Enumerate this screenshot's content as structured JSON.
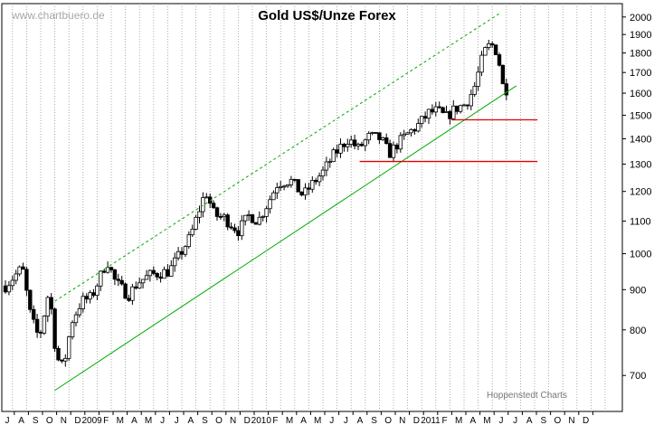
{
  "chart_data": {
    "type": "candlestick",
    "title": "Gold US$/Unze Forex",
    "watermark": "www.chartbuero.de",
    "credit": "Hoppenstedt Charts",
    "y_scale": "log",
    "ylim": [
      630,
      2080
    ],
    "y_ticks": [
      700,
      800,
      900,
      1000,
      1100,
      1200,
      1300,
      1400,
      1500,
      1600,
      1700,
      1800,
      1900,
      2000
    ],
    "x_month_labels": [
      "J",
      "A",
      "S",
      "O",
      "N",
      "D",
      "2009",
      "F",
      "M",
      "A",
      "M",
      "J",
      "J",
      "A",
      "S",
      "O",
      "N",
      "D",
      "2010",
      "F",
      "M",
      "A",
      "M",
      "J",
      "J",
      "A",
      "S",
      "O",
      "N",
      "D",
      "2011",
      "F",
      "M",
      "A",
      "M",
      "J",
      "J",
      "A",
      "S",
      "O",
      "N",
      "D"
    ],
    "grid": "vertical dotted",
    "colors": {
      "up_candle": "#ffffff",
      "down_candle": "#000000",
      "trend": "#00aa00",
      "support": "#e00000"
    },
    "anchors": [
      {
        "month": 0,
        "price": 910
      },
      {
        "month": 1.2,
        "price": 960
      },
      {
        "month": 1.8,
        "price": 830
      },
      {
        "month": 2.4,
        "price": 780
      },
      {
        "month": 3.1,
        "price": 900
      },
      {
        "month": 3.6,
        "price": 740
      },
      {
        "month": 4.1,
        "price": 715
      },
      {
        "month": 4.7,
        "price": 820
      },
      {
        "month": 5.4,
        "price": 870
      },
      {
        "month": 6.1,
        "price": 880
      },
      {
        "month": 7.2,
        "price": 980
      },
      {
        "month": 7.8,
        "price": 920
      },
      {
        "month": 8.7,
        "price": 885
      },
      {
        "month": 9.4,
        "price": 920
      },
      {
        "month": 10.3,
        "price": 940
      },
      {
        "month": 11.6,
        "price": 950
      },
      {
        "month": 12.4,
        "price": 1000
      },
      {
        "month": 13.1,
        "price": 1050
      },
      {
        "month": 13.9,
        "price": 1160
      },
      {
        "month": 14.2,
        "price": 1200
      },
      {
        "month": 14.8,
        "price": 1120
      },
      {
        "month": 15.5,
        "price": 1110
      },
      {
        "month": 16.5,
        "price": 1070
      },
      {
        "month": 17.3,
        "price": 1120
      },
      {
        "month": 17.9,
        "price": 1100
      },
      {
        "month": 18.6,
        "price": 1160
      },
      {
        "month": 19.3,
        "price": 1230
      },
      {
        "month": 20.2,
        "price": 1240
      },
      {
        "month": 21.1,
        "price": 1185
      },
      {
        "month": 21.8,
        "price": 1230
      },
      {
        "month": 22.5,
        "price": 1270
      },
      {
        "month": 23.2,
        "price": 1330
      },
      {
        "month": 23.8,
        "price": 1370
      },
      {
        "month": 24.3,
        "price": 1400
      },
      {
        "month": 25.0,
        "price": 1360
      },
      {
        "month": 25.8,
        "price": 1410
      },
      {
        "month": 26.6,
        "price": 1400
      },
      {
        "month": 27.2,
        "price": 1340
      },
      {
        "month": 27.8,
        "price": 1380
      },
      {
        "month": 28.5,
        "price": 1420
      },
      {
        "month": 29.3,
        "price": 1460
      },
      {
        "month": 30.0,
        "price": 1510
      },
      {
        "month": 30.6,
        "price": 1520
      },
      {
        "month": 31.2,
        "price": 1490
      },
      {
        "month": 31.9,
        "price": 1530
      },
      {
        "month": 32.6,
        "price": 1550
      },
      {
        "month": 33.2,
        "price": 1620
      },
      {
        "month": 33.9,
        "price": 1800
      },
      {
        "month": 34.4,
        "price": 1850
      },
      {
        "month": 34.9,
        "price": 1800
      },
      {
        "month": 35.2,
        "price": 1640
      },
      {
        "month": 35.5,
        "price": 1620
      }
    ],
    "trend_lower": [
      {
        "month": 3.5,
        "price": 670
      },
      {
        "month": 36.2,
        "price": 1635
      }
    ],
    "trend_upper": [
      {
        "month": 3.5,
        "price": 870
      },
      {
        "month": 35.0,
        "price": 2020
      }
    ],
    "support_lines": [
      {
        "price": 1310,
        "from_month": 25.1,
        "to_month": 37.7
      },
      {
        "price": 1480,
        "from_month": 31.6,
        "to_month": 37.7
      }
    ]
  }
}
